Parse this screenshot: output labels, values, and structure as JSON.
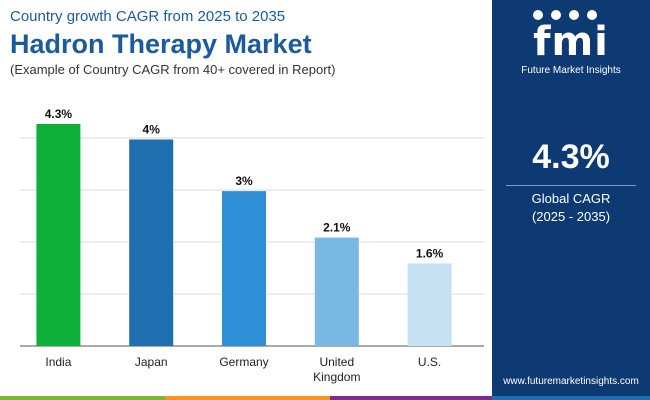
{
  "header": {
    "subtitle": "Country growth CAGR from 2025 to 2035",
    "title": "Hadron Therapy Market",
    "note": "(Example of Country CAGR from 40+ covered in Report)"
  },
  "chart_data": {
    "type": "bar",
    "categories": [
      "India",
      "Japan",
      "Germany",
      "United Kingdom",
      "U.S."
    ],
    "category_lines": [
      [
        "India"
      ],
      [
        "Japan"
      ],
      [
        "Germany"
      ],
      [
        "United",
        "Kingdom"
      ],
      [
        "U.S."
      ]
    ],
    "values": [
      4.3,
      4.0,
      3.0,
      2.1,
      1.6
    ],
    "value_labels": [
      "4.3%",
      "4%",
      "3%",
      "2.1%",
      "1.6%"
    ],
    "bar_colors": [
      "#0fb03a",
      "#1f6fb0",
      "#2e8fd6",
      "#79b8e3",
      "#c5e1f3"
    ],
    "ylim": [
      0,
      4.3
    ],
    "grid": true,
    "gridline_values": [
      0,
      1.05,
      2.1,
      3.15,
      4.2
    ],
    "y_axis_labels": false
  },
  "side_panel": {
    "logo_text": "fmi",
    "logo_subtitle": "Future Market Insights",
    "global_value": "4.3%",
    "global_label": "Global CAGR",
    "period": "(2025 - 2035)",
    "website": "www.futuremarketinsights.com",
    "background_color": "#0d3a73"
  },
  "bottom_bar_colors": [
    "#7ab929",
    "#f7931e",
    "#7b2d8e",
    "#1f6fb0"
  ]
}
